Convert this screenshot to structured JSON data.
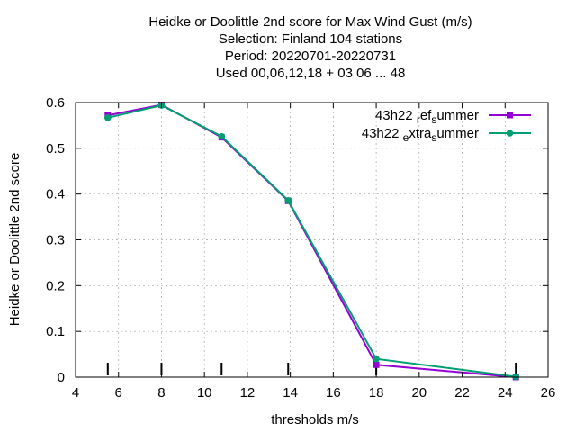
{
  "chart_data": {
    "type": "line",
    "title_lines": [
      "Heidke or Doolittle 2nd score  for Max Wind Gust (m/s)",
      "Selection: Finland    104 stations",
      "Period: 20220701-20220731",
      "Used  00,06,12,18  + 03 06 ... 48"
    ],
    "xlabel": "thresholds m/s",
    "ylabel": "Heidke or Doolittle 2nd score",
    "xlim": [
      4,
      26
    ],
    "ylim": [
      0,
      0.6
    ],
    "x_ticks": [
      4,
      6,
      8,
      10,
      12,
      14,
      16,
      18,
      20,
      22,
      24,
      26
    ],
    "y_ticks": [
      0,
      0.1,
      0.2,
      0.3,
      0.4,
      0.5,
      0.6
    ],
    "x_tick_labels": [
      "4",
      "6",
      "8",
      "10",
      "12",
      "14",
      "16",
      "18",
      "20",
      "22",
      "24",
      "26"
    ],
    "y_tick_labels": [
      "0",
      "0.1",
      "0.2",
      "0.3",
      "0.4",
      "0.5",
      "0.6"
    ],
    "grid": true,
    "legend_position": "top-right",
    "threshold_markers": [
      5.5,
      8,
      10.8,
      13.9,
      18,
      24.5
    ],
    "series": [
      {
        "name_parts": [
          "43h22 ",
          "r",
          "ef",
          "s",
          "ummer"
        ],
        "color": "#9400d3",
        "marker": "square",
        "x": [
          5.5,
          8,
          10.8,
          13.9,
          18,
          24.5
        ],
        "y": [
          0.572,
          0.595,
          0.524,
          0.385,
          0.027,
          0.0
        ]
      },
      {
        "name_parts": [
          "43h22 ",
          "e",
          "xtra",
          "s",
          "ummer"
        ],
        "color": "#009e73",
        "marker": "circle",
        "x": [
          5.5,
          8,
          10.8,
          13.9,
          18,
          24.5
        ],
        "y": [
          0.567,
          0.594,
          0.526,
          0.386,
          0.04,
          0.001
        ]
      }
    ]
  }
}
